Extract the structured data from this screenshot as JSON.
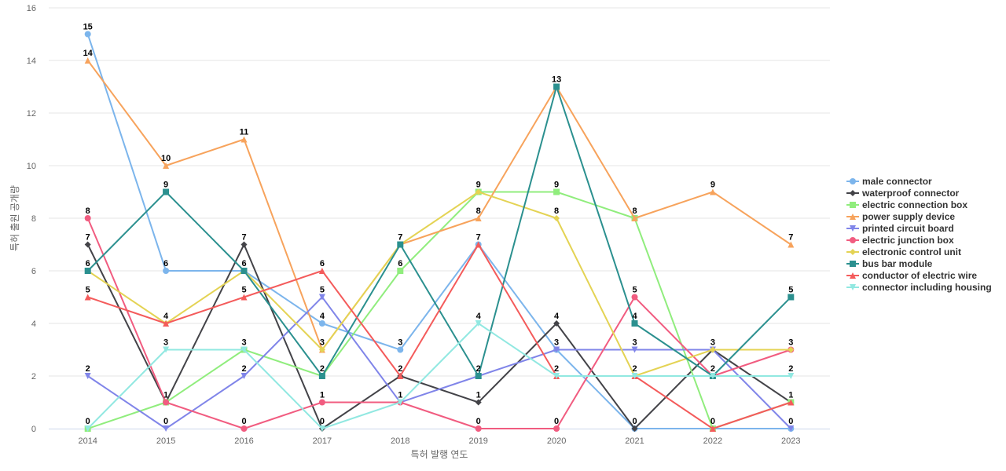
{
  "chart_data": {
    "type": "line",
    "title": "",
    "xlabel": "특허 발행 연도",
    "ylabel": "특허 출원 공개량",
    "x": [
      "2014",
      "2015",
      "2016",
      "2017",
      "2018",
      "2019",
      "2020",
      "2021",
      "2022",
      "2023"
    ],
    "ylim": [
      0,
      16
    ],
    "yticks": [
      "0",
      "2",
      "4",
      "6",
      "8",
      "10",
      "12",
      "14",
      "16"
    ],
    "grid": true,
    "legend_position": "right",
    "series": [
      {
        "name": "male connector",
        "color": "#7cb5ec",
        "marker": "circle",
        "values": [
          15,
          6,
          6,
          4,
          3,
          7,
          3,
          0,
          0,
          0
        ]
      },
      {
        "name": "waterproof connector",
        "color": "#434348",
        "marker": "diamond",
        "values": [
          7,
          1,
          7,
          0,
          2,
          1,
          4,
          0,
          3,
          1
        ]
      },
      {
        "name": "electric connection box",
        "color": "#90ed7d",
        "marker": "square",
        "values": [
          0,
          1,
          3,
          2,
          6,
          9,
          9,
          8,
          0,
          1
        ]
      },
      {
        "name": "power supply device",
        "color": "#f7a35c",
        "marker": "triangle",
        "values": [
          14,
          10,
          11,
          3,
          7,
          8,
          13,
          8,
          9,
          7
        ]
      },
      {
        "name": "printed circuit board",
        "color": "#8085e9",
        "marker": "triangle-down",
        "values": [
          2,
          0,
          2,
          5,
          1,
          2,
          3,
          3,
          3,
          0
        ]
      },
      {
        "name": "electric junction box",
        "color": "#f15c80",
        "marker": "circle",
        "values": [
          8,
          1,
          0,
          1,
          1,
          0,
          0,
          5,
          2,
          3
        ]
      },
      {
        "name": "electronic control unit",
        "color": "#e4d354",
        "marker": "diamond",
        "values": [
          6,
          4,
          6,
          3,
          7,
          9,
          8,
          2,
          3,
          3
        ]
      },
      {
        "name": "bus bar module",
        "color": "#2b908f",
        "marker": "square",
        "values": [
          6,
          9,
          6,
          2,
          7,
          2,
          13,
          4,
          2,
          5
        ]
      },
      {
        "name": "conductor of electric wire",
        "color": "#f45b5b",
        "marker": "triangle",
        "values": [
          5,
          4,
          5,
          6,
          2,
          7,
          2,
          2,
          0,
          1
        ]
      },
      {
        "name": "connector including housing",
        "color": "#91e8e1",
        "marker": "triangle-down",
        "values": [
          0,
          3,
          3,
          0,
          1,
          4,
          2,
          2,
          2,
          2
        ]
      }
    ],
    "data_labels": [
      {
        "x": "2014",
        "values": [
          15,
          14,
          8,
          7,
          6,
          5,
          2,
          0
        ]
      },
      {
        "x": "2015",
        "values": [
          10,
          9,
          6,
          4,
          3,
          1,
          0
        ]
      },
      {
        "x": "2016",
        "values": [
          11,
          7,
          6,
          5,
          3,
          2,
          0
        ]
      },
      {
        "x": "2017",
        "values": [
          6,
          5,
          4,
          3,
          2,
          1,
          0
        ]
      },
      {
        "x": "2018",
        "values": [
          7,
          6,
          3,
          2,
          1
        ]
      },
      {
        "x": "2019",
        "values": [
          9,
          8,
          7,
          4,
          2,
          1,
          0
        ]
      },
      {
        "x": "2020",
        "values": [
          13,
          9,
          8,
          4,
          3,
          2,
          0
        ]
      },
      {
        "x": "2021",
        "values": [
          8,
          5,
          4,
          3,
          2,
          0
        ]
      },
      {
        "x": "2022",
        "values": [
          9,
          3,
          2,
          0
        ]
      },
      {
        "x": "2023",
        "values": [
          7,
          5,
          3,
          2,
          1,
          0
        ]
      }
    ]
  }
}
